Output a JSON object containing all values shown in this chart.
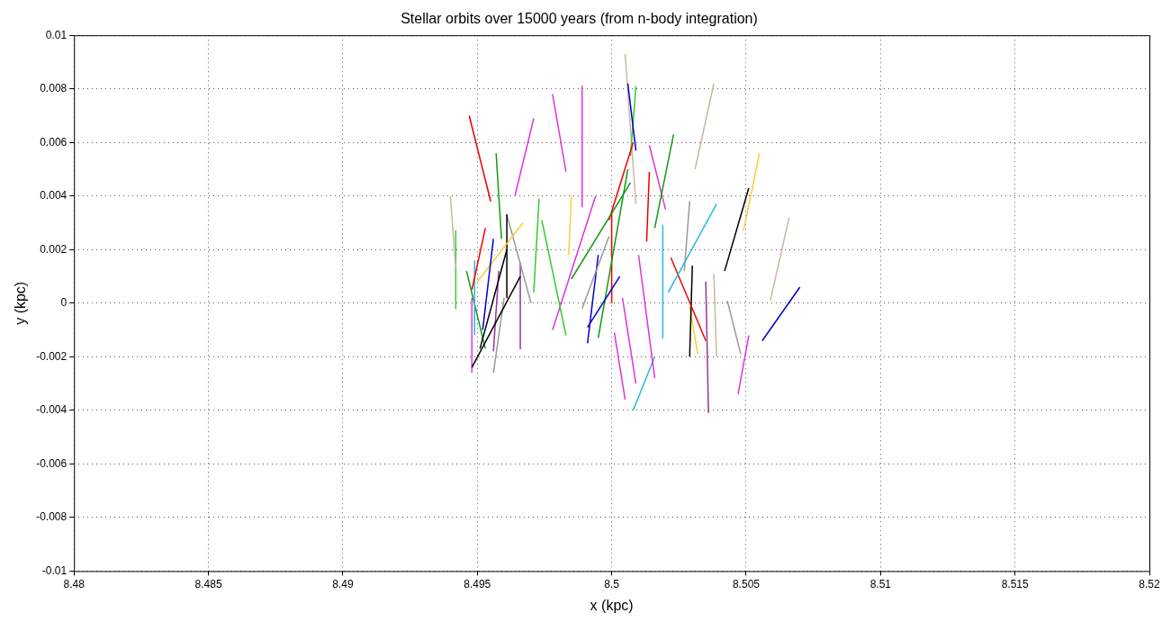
{
  "chart_data": {
    "type": "line",
    "title": "Stellar orbits over 15000 years (from n-body integration)",
    "xlabel": "x (kpc)",
    "ylabel": "y (kpc)",
    "xlim": [
      8.48,
      8.52
    ],
    "xticks": [
      8.48,
      8.485,
      8.49,
      8.495,
      8.5,
      8.505,
      8.51,
      8.515,
      8.52
    ],
    "ylim": [
      -0.01,
      0.01
    ],
    "yticks": [
      -0.01,
      -0.008,
      -0.006,
      -0.004,
      -0.002,
      0,
      0.002,
      0.004,
      0.006,
      0.008,
      0.01
    ],
    "grid": true,
    "legend": false,
    "series": [
      {
        "color": "#c8b8a0",
        "x": [
          8.494,
          8.4942
        ],
        "values": [
          0.004,
          0.0013
        ]
      },
      {
        "color": "#33cc33",
        "x": [
          8.4942,
          8.4942
        ],
        "values": [
          0.0027,
          -0.0002
        ]
      },
      {
        "color": "#ee0000",
        "x": [
          8.4947,
          8.4955
        ],
        "values": [
          0.007,
          0.0038
        ]
      },
      {
        "color": "#119911",
        "x": [
          8.4957,
          8.4959
        ],
        "values": [
          0.0056,
          0.0024
        ]
      },
      {
        "color": "#ee0000",
        "x": [
          8.4948,
          8.4953
        ],
        "values": [
          0.0005,
          0.0028
        ]
      },
      {
        "color": "#22bbdd",
        "x": [
          8.4949,
          8.4949
        ],
        "values": [
          -0.0012,
          0.0016
        ]
      },
      {
        "color": "#0000cc",
        "x": [
          8.4952,
          8.4956
        ],
        "values": [
          -0.001,
          0.0024
        ]
      },
      {
        "color": "#ffcc33",
        "x": [
          8.495,
          8.4967
        ],
        "values": [
          0.0008,
          0.003
        ]
      },
      {
        "color": "#000000",
        "x": [
          8.4951,
          8.4961
        ],
        "values": [
          -0.0017,
          0.002
        ]
      },
      {
        "color": "#000000",
        "x": [
          8.4948,
          8.4966
        ],
        "values": [
          -0.0024,
          0.001
        ]
      },
      {
        "color": "#000000",
        "x": [
          8.4961,
          8.4961
        ],
        "values": [
          0.0033,
          0.0002
        ]
      },
      {
        "color": "#999999",
        "x": [
          8.4961,
          8.497
        ],
        "values": [
          0.0033,
          0
        ]
      },
      {
        "color": "#999999",
        "x": [
          8.4956,
          8.496
        ],
        "values": [
          -0.0026,
          0.0002
        ]
      },
      {
        "color": "#993399",
        "x": [
          8.4966,
          8.4966
        ],
        "values": [
          0.0015,
          -0.0017
        ]
      },
      {
        "color": "#993399",
        "x": [
          8.4958,
          8.4956
        ],
        "values": [
          0.0012,
          -0.0018
        ]
      },
      {
        "color": "#dd33dd",
        "x": [
          8.4948,
          8.4948
        ],
        "values": [
          -0.0026,
          0.0002
        ]
      },
      {
        "color": "#119911",
        "x": [
          8.4946,
          8.4953
        ],
        "values": [
          0.0012,
          -0.0017
        ]
      },
      {
        "color": "#dd33dd",
        "x": [
          8.4964,
          8.4971
        ],
        "values": [
          0.004,
          0.0069
        ]
      },
      {
        "color": "#33cc33",
        "x": [
          8.4971,
          8.4973
        ],
        "values": [
          0.0004,
          0.0039
        ]
      },
      {
        "color": "#33cc33",
        "x": [
          8.4974,
          8.4983
        ],
        "values": [
          0.0031,
          -0.0012
        ]
      },
      {
        "color": "#dd33dd",
        "x": [
          8.4978,
          8.4983
        ],
        "values": [
          0.0078,
          0.0049
        ]
      },
      {
        "color": "#dd33dd",
        "x": [
          8.4989,
          8.4989
        ],
        "values": [
          0.0081,
          0.0036
        ]
      },
      {
        "color": "#ffcc33",
        "x": [
          8.4984,
          8.4985
        ],
        "values": [
          0.0018,
          0.004
        ]
      },
      {
        "color": "#dd33dd",
        "x": [
          8.4978,
          8.4994
        ],
        "values": [
          -0.001,
          0.004
        ]
      },
      {
        "color": "#119911",
        "x": [
          8.4985,
          8.5007
        ],
        "values": [
          0.0009,
          0.0045
        ]
      },
      {
        "color": "#999999",
        "x": [
          8.4989,
          8.4999
        ],
        "values": [
          -0.0002,
          0.0025
        ]
      },
      {
        "color": "#0000cc",
        "x": [
          8.4991,
          8.4995
        ],
        "values": [
          -0.0015,
          0.0018
        ]
      },
      {
        "color": "#0000cc",
        "x": [
          8.4991,
          8.5003
        ],
        "values": [
          -0.0009,
          0.001
        ]
      },
      {
        "color": "#119911",
        "x": [
          8.4995,
          8.5006
        ],
        "values": [
          -0.0013,
          0.005
        ]
      },
      {
        "color": "#ee0000",
        "x": [
          8.4999,
          8.5008
        ],
        "values": [
          0.0031,
          0.006
        ]
      },
      {
        "color": "#0000cc",
        "x": [
          8.5006,
          8.5009
        ],
        "values": [
          0.0082,
          0.0057
        ]
      },
      {
        "color": "#33cc33",
        "x": [
          8.5009,
          8.5007
        ],
        "values": [
          0.0081,
          0.0055
        ]
      },
      {
        "color": "#c8b8a0",
        "x": [
          8.5005,
          8.5009
        ],
        "values": [
          0.0093,
          0.0037
        ]
      },
      {
        "color": "#dd33dd",
        "x": [
          8.5004,
          8.5009
        ],
        "values": [
          0.0002,
          -0.003
        ]
      },
      {
        "color": "#dd33dd",
        "x": [
          8.5001,
          8.5005
        ],
        "values": [
          -0.0011,
          -0.0036
        ]
      },
      {
        "color": "#ee0000",
        "x": [
          8.5014,
          8.5013
        ],
        "values": [
          0.0049,
          0.0023
        ]
      },
      {
        "color": "#119911",
        "x": [
          8.5016,
          8.5023
        ],
        "values": [
          0.0028,
          0.0063
        ]
      },
      {
        "color": "#dd33dd",
        "x": [
          8.5014,
          8.502
        ],
        "values": [
          0.0059,
          0.0035
        ]
      },
      {
        "color": "#dd33dd",
        "x": [
          8.501,
          8.5016
        ],
        "values": [
          0.0018,
          -0.0028
        ]
      },
      {
        "color": "#22bbdd",
        "x": [
          8.5008,
          8.5016
        ],
        "values": [
          -0.004,
          -0.002
        ]
      },
      {
        "color": "#22bbdd",
        "x": [
          8.5019,
          8.5019
        ],
        "values": [
          0.0029,
          -0.0013
        ]
      },
      {
        "color": "#22bbdd",
        "x": [
          8.5021,
          8.5039
        ],
        "values": [
          0.0004,
          0.0037
        ]
      },
      {
        "color": "#ee0000",
        "x": [
          8.5022,
          8.5035
        ],
        "values": [
          0.0017,
          -0.0014
        ]
      },
      {
        "color": "#000000",
        "x": [
          8.503,
          8.5029
        ],
        "values": [
          0.0014,
          -0.002
        ]
      },
      {
        "color": "#999999",
        "x": [
          8.5029,
          8.5027
        ],
        "values": [
          0.0038,
          0.0012
        ]
      },
      {
        "color": "#ffcc33",
        "x": [
          8.5029,
          8.5032
        ],
        "values": [
          -0.0001,
          -0.0019
        ]
      },
      {
        "color": "#c8b8a0",
        "x": [
          8.5031,
          8.5038
        ],
        "values": [
          0.005,
          0.0082
        ]
      },
      {
        "color": "#993399",
        "x": [
          8.5035,
          8.5036
        ],
        "values": [
          0.0008,
          -0.0041
        ]
      },
      {
        "color": "#c8b8a0",
        "x": [
          8.5038,
          8.5039
        ],
        "values": [
          0.0011,
          -0.002
        ]
      },
      {
        "color": "#000000",
        "x": [
          8.5042,
          8.5051
        ],
        "values": [
          0.0012,
          0.0043
        ]
      },
      {
        "color": "#ffcc33",
        "x": [
          8.5049,
          8.5055
        ],
        "values": [
          0.0027,
          0.0056
        ]
      },
      {
        "color": "#999999",
        "x": [
          8.5043,
          8.5048
        ],
        "values": [
          0.0001,
          -0.0019
        ]
      },
      {
        "color": "#dd33dd",
        "x": [
          8.5047,
          8.5051
        ],
        "values": [
          -0.0034,
          -0.0012
        ]
      },
      {
        "color": "#c8b8a0",
        "x": [
          8.5059,
          8.5066
        ],
        "values": [
          0.0001,
          0.0032
        ]
      },
      {
        "color": "#0000cc",
        "x": [
          8.5056,
          8.507
        ],
        "values": [
          -0.0014,
          0.0006
        ]
      },
      {
        "color": "#ee0000",
        "x": [
          8.5,
          8.5
        ],
        "values": [
          0,
          0.0034
        ]
      }
    ]
  }
}
